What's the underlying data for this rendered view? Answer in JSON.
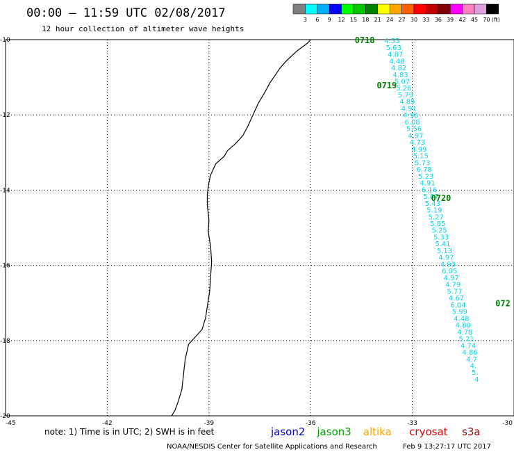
{
  "header": {
    "title": "00:00 – 11:59 UTC 02/08/2017",
    "subtitle": "12 hour collection of altimeter wave heights"
  },
  "colorbar": {
    "colors": [
      "#808080",
      "#00ffff",
      "#00b0ff",
      "#0000ff",
      "#00ff00",
      "#00c800",
      "#008000",
      "#ffff00",
      "#ffa500",
      "#ff6000",
      "#ff0000",
      "#c00000",
      "#800000",
      "#ff00ff",
      "#ff80c0",
      "#e0a0e0",
      "#000000"
    ],
    "labels": [
      "3",
      "6",
      "9",
      "12",
      "15",
      "18",
      "21",
      "24",
      "27",
      "30",
      "33",
      "36",
      "39",
      "42",
      "45",
      "70"
    ],
    "unit": "(ft)"
  },
  "chart_data": {
    "type": "map-track",
    "x_ticks": [
      "-45",
      "-42",
      "-39",
      "-36",
      "-33",
      "-30"
    ],
    "y_ticks": [
      "-10",
      "-12",
      "-14",
      "-16",
      "-18",
      "-20"
    ],
    "xlim": [
      -45,
      -30
    ],
    "ylim": [
      -20,
      -10
    ],
    "pass_labels": [
      {
        "text": "0718",
        "lon": -34.7,
        "lat": -10.0
      },
      {
        "text": "0719",
        "lon": -34.05,
        "lat": -11.2
      },
      {
        "text": "0720",
        "lon": -32.45,
        "lat": -14.2
      },
      {
        "text": "072",
        "lon": -30.55,
        "lat": -17.0
      }
    ],
    "observations": [
      {
        "lon": -33.6,
        "lat": -10.02,
        "swh": "4.55"
      },
      {
        "lon": -33.55,
        "lat": -10.2,
        "swh": "5.63"
      },
      {
        "lon": -33.5,
        "lat": -10.38,
        "swh": "4.87"
      },
      {
        "lon": -33.45,
        "lat": -10.56,
        "swh": "4.48"
      },
      {
        "lon": -33.4,
        "lat": -10.74,
        "swh": "4.82"
      },
      {
        "lon": -33.35,
        "lat": -10.92,
        "swh": "4.83"
      },
      {
        "lon": -33.3,
        "lat": -11.1,
        "swh": "5.07"
      },
      {
        "lon": -33.25,
        "lat": -11.28,
        "swh": "5.26"
      },
      {
        "lon": -33.2,
        "lat": -11.46,
        "swh": "5.79"
      },
      {
        "lon": -33.15,
        "lat": -11.64,
        "swh": "4.89"
      },
      {
        "lon": -33.1,
        "lat": -11.82,
        "swh": "4.91"
      },
      {
        "lon": -33.05,
        "lat": -12.0,
        "swh": "4.96"
      },
      {
        "lon": -33.0,
        "lat": -12.18,
        "swh": "6.08"
      },
      {
        "lon": -32.95,
        "lat": -12.36,
        "swh": "5.56"
      },
      {
        "lon": -32.9,
        "lat": -12.54,
        "swh": "4.97"
      },
      {
        "lon": -32.85,
        "lat": -12.72,
        "swh": "4.73"
      },
      {
        "lon": -32.8,
        "lat": -12.9,
        "swh": "4.99"
      },
      {
        "lon": -32.75,
        "lat": -13.08,
        "swh": "5.15"
      },
      {
        "lon": -32.7,
        "lat": -13.26,
        "swh": "5.73"
      },
      {
        "lon": -32.65,
        "lat": -13.44,
        "swh": "6.78"
      },
      {
        "lon": -32.6,
        "lat": -13.62,
        "swh": "5.23"
      },
      {
        "lon": -32.55,
        "lat": -13.8,
        "swh": "4.91"
      },
      {
        "lon": -32.5,
        "lat": -13.98,
        "swh": "6.16"
      },
      {
        "lon": -32.45,
        "lat": -14.16,
        "swh": "5.07"
      },
      {
        "lon": -32.4,
        "lat": -14.34,
        "swh": "5.43"
      },
      {
        "lon": -32.35,
        "lat": -14.52,
        "swh": "5.19"
      },
      {
        "lon": -32.3,
        "lat": -14.7,
        "swh": "5.27"
      },
      {
        "lon": -32.25,
        "lat": -14.88,
        "swh": "5.85"
      },
      {
        "lon": -32.2,
        "lat": -15.06,
        "swh": "5.25"
      },
      {
        "lon": -32.15,
        "lat": -15.24,
        "swh": "5.33"
      },
      {
        "lon": -32.1,
        "lat": -15.42,
        "swh": "5.41"
      },
      {
        "lon": -32.05,
        "lat": -15.6,
        "swh": "5.13"
      },
      {
        "lon": -32.0,
        "lat": -15.78,
        "swh": "4.97"
      },
      {
        "lon": -31.95,
        "lat": -15.96,
        "swh": "4.93"
      },
      {
        "lon": -31.9,
        "lat": -16.14,
        "swh": "6.05"
      },
      {
        "lon": -31.85,
        "lat": -16.32,
        "swh": "4.97"
      },
      {
        "lon": -31.8,
        "lat": -16.5,
        "swh": "4.79"
      },
      {
        "lon": -31.75,
        "lat": -16.68,
        "swh": "5.77"
      },
      {
        "lon": -31.7,
        "lat": -16.86,
        "swh": "4.67"
      },
      {
        "lon": -31.65,
        "lat": -17.04,
        "swh": "6.04"
      },
      {
        "lon": -31.6,
        "lat": -17.22,
        "swh": "5.99"
      },
      {
        "lon": -31.55,
        "lat": -17.4,
        "swh": "4.48"
      },
      {
        "lon": -31.5,
        "lat": -17.58,
        "swh": "4.80"
      },
      {
        "lon": -31.45,
        "lat": -17.76,
        "swh": "4.78"
      },
      {
        "lon": -31.4,
        "lat": -17.94,
        "swh": "5.21"
      },
      {
        "lon": -31.35,
        "lat": -18.12,
        "swh": "4.74"
      },
      {
        "lon": -31.3,
        "lat": -18.3,
        "swh": "4.86"
      },
      {
        "lon": -31.25,
        "lat": -18.48,
        "swh": "4.7"
      },
      {
        "lon": -31.2,
        "lat": -18.66,
        "swh": "4."
      },
      {
        "lon": -31.15,
        "lat": -18.84,
        "swh": "5."
      },
      {
        "lon": -31.1,
        "lat": -19.02,
        "swh": "4"
      }
    ],
    "coastline": [
      [
        -36.0,
        -10.0
      ],
      [
        -36.1,
        -10.1
      ],
      [
        -36.4,
        -10.3
      ],
      [
        -36.7,
        -10.55
      ],
      [
        -36.9,
        -10.75
      ],
      [
        -37.05,
        -10.95
      ],
      [
        -37.2,
        -11.15
      ],
      [
        -37.35,
        -11.4
      ],
      [
        -37.55,
        -11.7
      ],
      [
        -37.7,
        -12.0
      ],
      [
        -37.85,
        -12.3
      ],
      [
        -38.0,
        -12.55
      ],
      [
        -38.2,
        -12.75
      ],
      [
        -38.45,
        -12.95
      ],
      [
        -38.55,
        -13.1
      ],
      [
        -38.8,
        -13.3
      ],
      [
        -38.95,
        -13.6
      ],
      [
        -39.0,
        -13.8
      ],
      [
        -39.05,
        -14.1
      ],
      [
        -39.05,
        -14.4
      ],
      [
        -39.0,
        -14.8
      ],
      [
        -39.02,
        -15.1
      ],
      [
        -38.95,
        -15.5
      ],
      [
        -38.92,
        -15.9
      ],
      [
        -38.95,
        -16.3
      ],
      [
        -38.98,
        -16.7
      ],
      [
        -39.05,
        -17.1
      ],
      [
        -39.1,
        -17.4
      ],
      [
        -39.2,
        -17.7
      ],
      [
        -39.4,
        -17.9
      ],
      [
        -39.6,
        -18.1
      ],
      [
        -39.7,
        -18.5
      ],
      [
        -39.75,
        -18.9
      ],
      [
        -39.8,
        -19.3
      ],
      [
        -39.9,
        -19.6
      ],
      [
        -40.0,
        -19.85
      ],
      [
        -40.1,
        -20.0
      ]
    ]
  },
  "footer": {
    "note": "note: 1) Time is in UTC; 2) SWH is in feet",
    "satellites": [
      {
        "name": "jason2",
        "color": "#0000cc"
      },
      {
        "name": "jason3",
        "color": "#00a000"
      },
      {
        "name": "altika",
        "color": "#ffa500"
      },
      {
        "name": "cryosat",
        "color": "#dd0000"
      },
      {
        "name": "s3a",
        "color": "#8b0000"
      }
    ],
    "credit": "NOAA/NESDIS Center for Satellite Applications and Research",
    "timestamp": "Feb  9 13:27:17 UTC 2017"
  },
  "colors": {
    "obs_text": "#00d8e8",
    "pass_label": "#008000",
    "grid": "#000000"
  }
}
